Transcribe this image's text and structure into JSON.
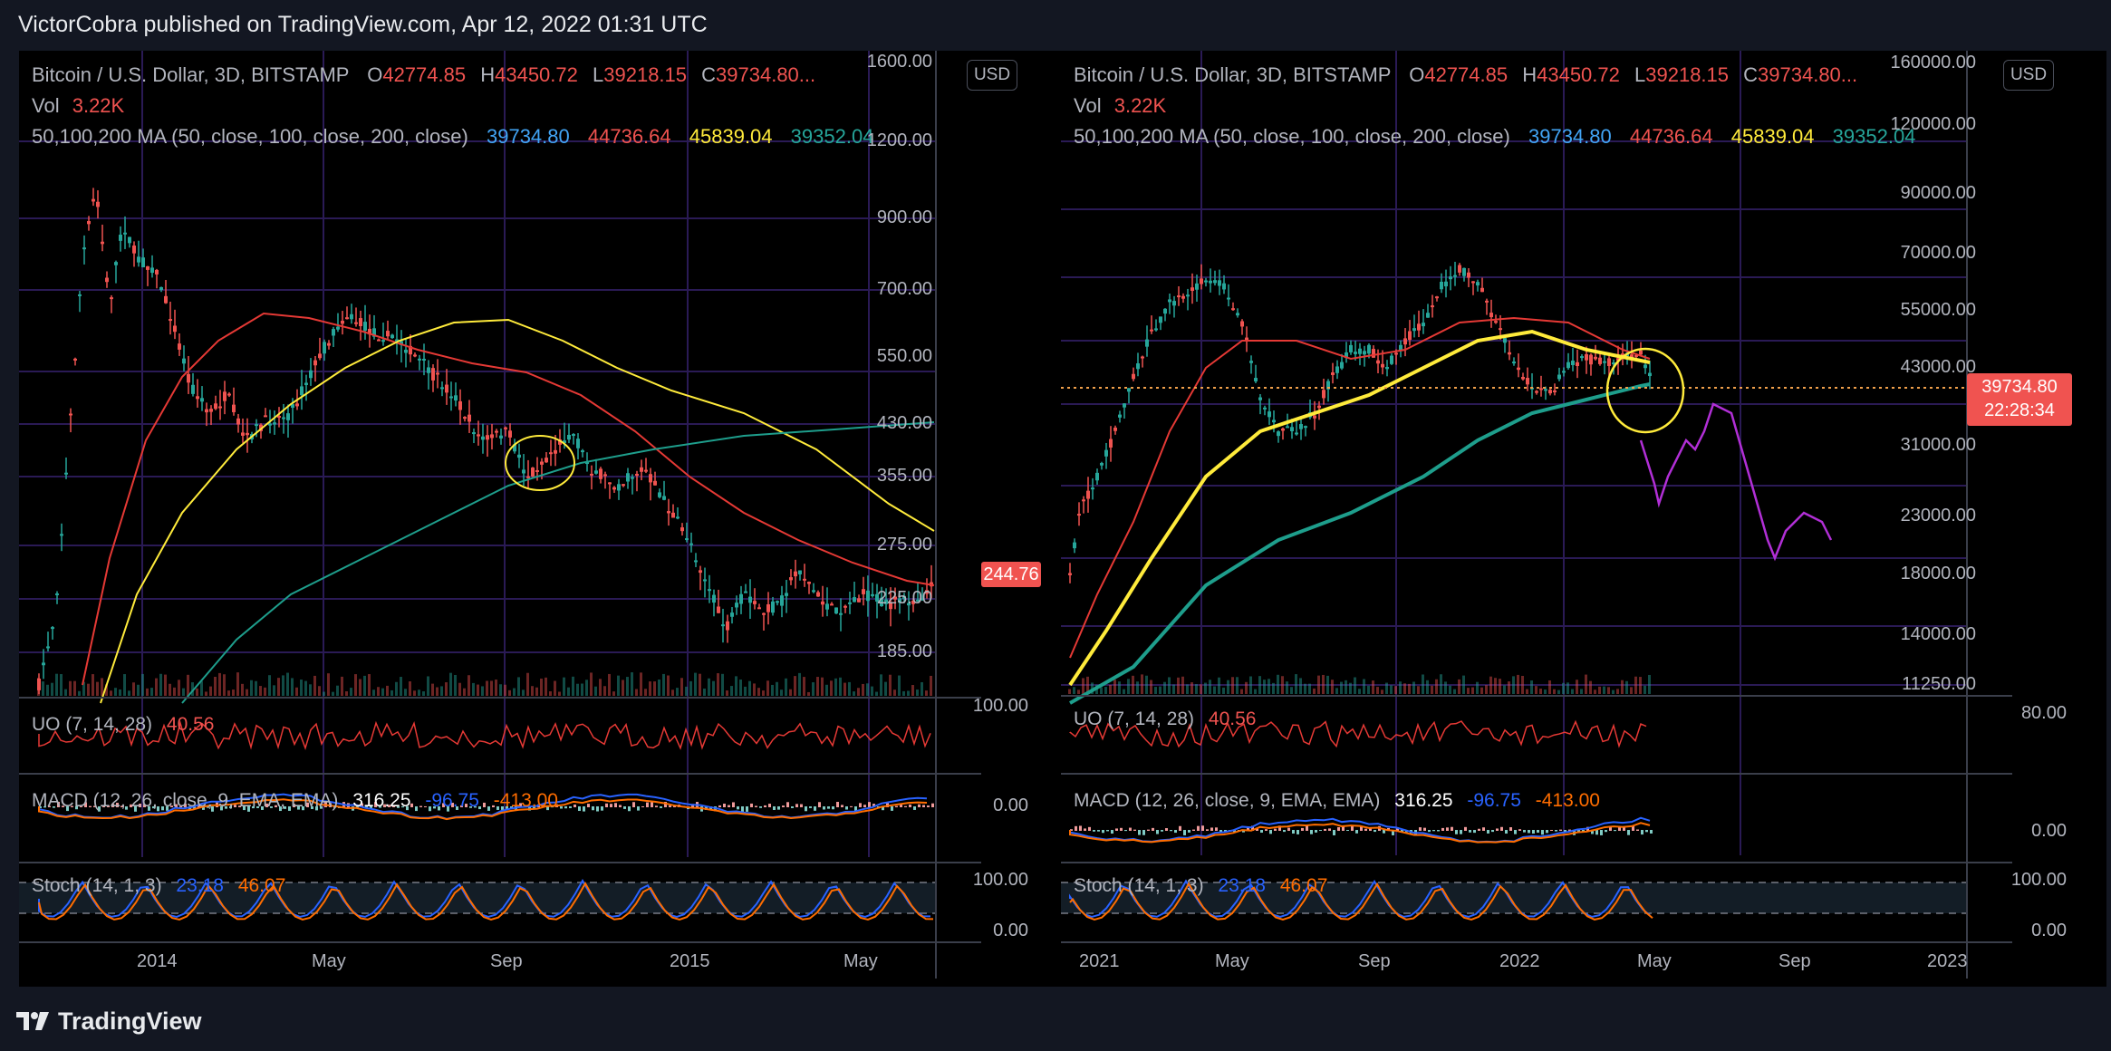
{
  "header": {
    "publisher_line": "VictorCobra published on TradingView.com, Apr 12, 2022 01:31 UTC"
  },
  "footer": {
    "brand": "TradingView",
    "logo_icon": "tradingview-logo-icon"
  },
  "colors": {
    "up": "#26a69a",
    "down": "#ef5350",
    "ma50": "#e53935",
    "ma100": "#ffeb3b",
    "ma200": "#1e9e8c",
    "projection": "#b12fd6",
    "grid": "#2a1a55",
    "badge": "#f05350"
  },
  "left_panel": {
    "symbol": "Bitcoin / U.S. Dollar, 3D, BITSTAMP",
    "o_label": "O",
    "o_value": "42774.85",
    "h_label": "H",
    "h_value": "43450.72",
    "l_label": "L",
    "l_value": "39218.15",
    "c_label": "C",
    "c_value": "39734.80...",
    "vol_label": "Vol",
    "vol_value": "3.22K",
    "ma_label": "50,100,200 MA (50, close, 100, close, 200, close)",
    "ma_values": [
      "39734.80",
      "44736.64",
      "45839.04",
      "39352.04"
    ],
    "currency": "USD",
    "price_ticks": [
      "1600.00",
      "1200.00",
      "900.00",
      "700.00",
      "550.00",
      "430.00",
      "355.00",
      "275.00",
      "225.00",
      "185.00"
    ],
    "last_price": "244.76",
    "uo_label": "UO (7, 14, 28)",
    "uo_value": "40.56",
    "uo_tick": "100.00",
    "macd_label": "MACD (12, 26, close, 9, EMA, EMA)",
    "macd_values": [
      "316.25",
      "-96.75",
      "-413.00"
    ],
    "macd_tick": "0.00",
    "stoch_label": "Stoch (14, 1, 3)",
    "stoch_values": [
      "23.18",
      "46.07"
    ],
    "stoch_ticks": [
      "100.00",
      "0.00"
    ],
    "time_ticks": [
      "2014",
      "May",
      "Sep",
      "2015",
      "May"
    ]
  },
  "right_panel": {
    "symbol": "Bitcoin / U.S. Dollar, 3D, BITSTAMP",
    "o_label": "O",
    "o_value": "42774.85",
    "h_label": "H",
    "h_value": "43450.72",
    "l_label": "L",
    "l_value": "39218.15",
    "c_label": "C",
    "c_value": "39734.80...",
    "vol_label": "Vol",
    "vol_value": "3.22K",
    "ma_label": "50,100,200 MA (50, close, 100, close, 200, close)",
    "ma_values": [
      "39734.80",
      "44736.64",
      "45839.04",
      "39352.04"
    ],
    "currency": "USD",
    "price_ticks": [
      "160000.00",
      "120000.00",
      "90000.00",
      "70000.00",
      "55000.00",
      "43000.00",
      "31000.00",
      "23000.00",
      "18000.00",
      "14000.00",
      "11250.00"
    ],
    "last_price": "39734.80",
    "countdown": "22:28:34",
    "uo_label": "UO (7, 14, 28)",
    "uo_value": "40.56",
    "uo_tick": "80.00",
    "macd_label": "MACD (12, 26, close, 9, EMA, EMA)",
    "macd_values": [
      "316.25",
      "-96.75",
      "-413.00"
    ],
    "macd_tick": "0.00",
    "stoch_label": "Stoch (14, 1, 3)",
    "stoch_values": [
      "23.18",
      "46.07"
    ],
    "stoch_ticks": [
      "100.00",
      "0.00"
    ],
    "time_ticks": [
      "2021",
      "May",
      "Sep",
      "2022",
      "May",
      "Sep",
      "2023"
    ]
  }
}
